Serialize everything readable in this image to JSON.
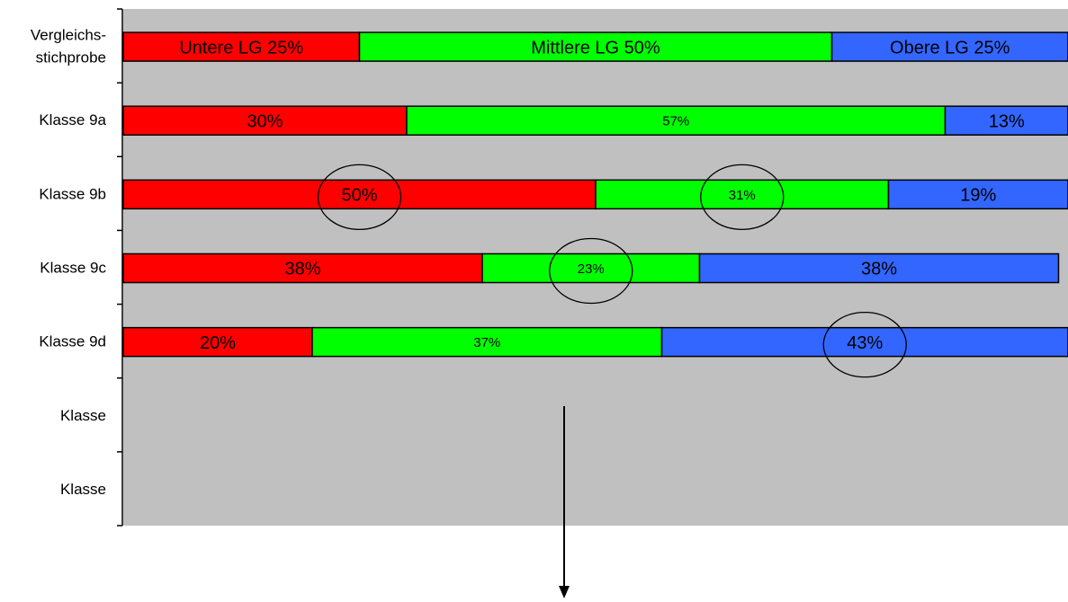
{
  "chart_data": {
    "type": "bar",
    "orientation": "horizontal",
    "stacked": true,
    "normalized_percent": true,
    "categories": [
      [
        "Vergleichs-",
        "stichprobe"
      ],
      [
        "Klasse 9a"
      ],
      [
        "Klasse 9b"
      ],
      [
        "Klasse 9c"
      ],
      [
        "Klasse 9d"
      ],
      [
        "Klasse"
      ],
      [
        "Klasse"
      ]
    ],
    "series": [
      {
        "name": "Untere LG",
        "color": "#ff0000",
        "values": [
          25,
          30,
          50,
          38,
          20,
          null,
          null
        ]
      },
      {
        "name": "Mittlere LG",
        "color": "#00ff00",
        "values": [
          50,
          57,
          31,
          23,
          37,
          null,
          null
        ]
      },
      {
        "name": "Obere LG",
        "color": "#3366ff",
        "values": [
          25,
          13,
          19,
          38,
          43,
          null,
          null
        ]
      }
    ],
    "segment_labels": [
      [
        "Untere LG 25%",
        "Mittlere LG 50%",
        "Obere LG 25%"
      ],
      [
        "30%",
        "57%",
        "13%"
      ],
      [
        "50%",
        "31%",
        "19%"
      ],
      [
        "38%",
        "23%",
        "38%"
      ],
      [
        "20%",
        "37%",
        "43%"
      ],
      [],
      []
    ],
    "label_sizes": [
      [
        "large",
        "large",
        "large"
      ],
      [
        "large",
        "small",
        "large"
      ],
      [
        "large",
        "small",
        "large"
      ],
      [
        "large",
        "small",
        "large"
      ],
      [
        "large",
        "small",
        "large"
      ],
      [],
      []
    ],
    "highlighted": [
      {
        "category": 2,
        "series": 0
      },
      {
        "category": 2,
        "series": 1
      },
      {
        "category": 3,
        "series": 1
      },
      {
        "category": 4,
        "series": 2
      }
    ],
    "plot_background": "#c0c0c0",
    "annotation": "down-arrow",
    "xlim": [
      0,
      100
    ],
    "grid": false,
    "legend": "none"
  }
}
